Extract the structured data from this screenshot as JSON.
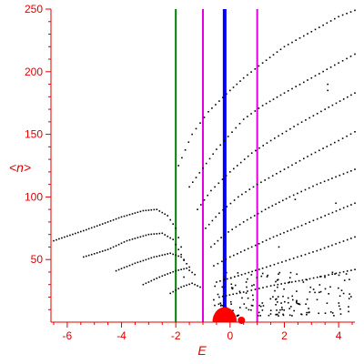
{
  "chart_data": {
    "type": "scatter",
    "title": "",
    "xlabel": "E",
    "ylabel": "<n>",
    "xlim": [
      -6.6,
      4.6
    ],
    "ylim": [
      0,
      250
    ],
    "x_ticks": [
      -6,
      -4,
      -2,
      0,
      2,
      4
    ],
    "x_tick_labels": [
      "-6",
      "-4",
      "-2",
      "0",
      "2",
      "4"
    ],
    "y_ticks": [
      50,
      100,
      150,
      200,
      250
    ],
    "y_tick_labels": [
      "50",
      "100",
      "150",
      "200",
      "250"
    ],
    "grid": false,
    "legend": "none",
    "colors": {
      "axes": "#e00000",
      "points": "#000000",
      "blob": "#ff0000",
      "green_line": "#008000",
      "magenta_line": "#e000e0",
      "blue_line": "#0000ff"
    },
    "vertical_lines": [
      {
        "x": -2.0,
        "color": "green"
      },
      {
        "x": -1.0,
        "color": "magenta"
      },
      {
        "x": -0.2,
        "color": "blue"
      },
      {
        "x": 1.0,
        "color": "magenta"
      }
    ],
    "blob": {
      "x": -0.2,
      "y": 0,
      "rx": 0.45,
      "ry": 12
    },
    "left_branches": [
      {
        "x": [
          -6.5,
          -5.0,
          -4.0,
          -3.2,
          -2.7,
          -2.3,
          -2.0,
          -1.8
        ],
        "y": [
          65,
          76,
          84,
          89,
          90,
          85,
          75,
          60
        ]
      },
      {
        "x": [
          -5.4,
          -4.5,
          -3.8,
          -3.0,
          -2.5,
          -2.1,
          -1.7
        ],
        "y": [
          52,
          58,
          65,
          70,
          71,
          66,
          50
        ]
      },
      {
        "x": [
          -4.2,
          -3.5,
          -2.8,
          -2.2,
          -1.8,
          -1.5
        ],
        "y": [
          41,
          47,
          52,
          55,
          52,
          44
        ]
      },
      {
        "x": [
          -3.2,
          -2.6,
          -2.0,
          -1.6,
          -1.3
        ],
        "y": [
          30,
          36,
          41,
          43,
          38
        ]
      },
      {
        "x": [
          -2.2,
          -1.8,
          -1.4,
          -1.1
        ],
        "y": [
          23,
          28,
          31,
          28
        ]
      }
    ],
    "fan_branches": [
      {
        "x": [
          -1.9,
          -1.4,
          -0.8,
          0.0,
          0.5,
          1.2,
          2.0,
          3.0,
          4.0,
          4.6
        ],
        "y": [
          125,
          150,
          168,
          185,
          195,
          207,
          220,
          232,
          244,
          249
        ]
      },
      {
        "x": [
          -1.5,
          -1.0,
          -0.5,
          0.5,
          1.2,
          2.0,
          3.0,
          4.0,
          4.6
        ],
        "y": [
          108,
          123,
          138,
          162,
          173,
          183,
          195,
          207,
          214
        ]
      },
      {
        "x": [
          -1.2,
          -0.7,
          0.0,
          0.8,
          1.5,
          2.5,
          3.5,
          4.6
        ],
        "y": [
          90,
          105,
          120,
          135,
          145,
          158,
          170,
          183
        ]
      },
      {
        "x": [
          -0.9,
          -0.4,
          0.3,
          1.0,
          2.0,
          3.0,
          4.0,
          4.6
        ],
        "y": [
          75,
          87,
          100,
          110,
          122,
          134,
          145,
          152
        ]
      },
      {
        "x": [
          -0.7,
          -0.2,
          0.5,
          1.3,
          2.2,
          3.2,
          4.6
        ],
        "y": [
          60,
          70,
          80,
          90,
          100,
          110,
          122
        ]
      },
      {
        "x": [
          -0.6,
          0.0,
          0.8,
          1.6,
          2.5,
          3.5,
          4.6
        ],
        "y": [
          45,
          52,
          60,
          68,
          76,
          85,
          95
        ]
      },
      {
        "x": [
          -0.5,
          0.3,
          1.2,
          2.2,
          3.2,
          4.6
        ],
        "y": [
          32,
          37,
          43,
          50,
          57,
          68
        ]
      },
      {
        "x": [
          -0.4,
          0.5,
          1.5,
          2.8,
          4.6
        ],
        "y": [
          20,
          24,
          29,
          34,
          42
        ]
      }
    ],
    "scatter_cloud": {
      "x_range": [
        -0.6,
        4.6
      ],
      "y_range": [
        5,
        40
      ],
      "count": 170
    },
    "outlier_points": [
      {
        "x": 3.6,
        "y": 190
      },
      {
        "x": 3.6,
        "y": 185
      },
      {
        "x": 2.4,
        "y": 98
      },
      {
        "x": 3.9,
        "y": 95
      },
      {
        "x": 1.8,
        "y": 60
      },
      {
        "x": -1.7,
        "y": 36
      }
    ]
  }
}
